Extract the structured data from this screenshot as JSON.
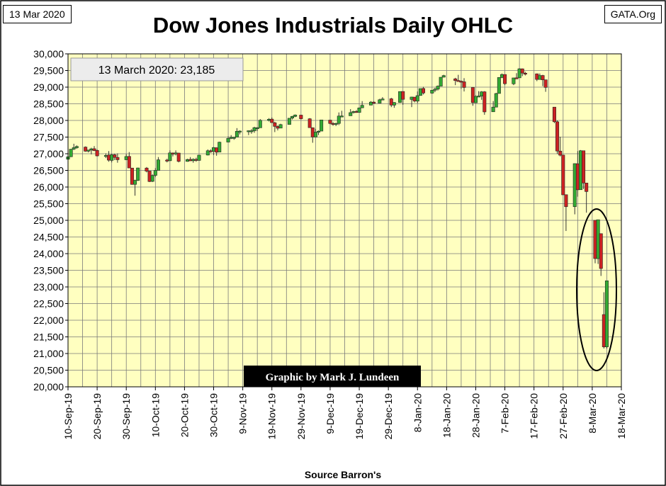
{
  "header": {
    "date_label": "13 Mar 2020",
    "site_label": "GATA.Org"
  },
  "chart_data": {
    "type": "candlestick",
    "title": "Dow Jones Industrials Daily OHLC",
    "xlabel": "Source Barron's",
    "ylabel": "",
    "ylim": [
      20000,
      30000
    ],
    "y_ticks": [
      20000,
      20500,
      21000,
      21500,
      22000,
      22500,
      23000,
      23500,
      24000,
      24500,
      25000,
      25500,
      26000,
      26500,
      27000,
      27500,
      28000,
      28500,
      29000,
      29500,
      30000
    ],
    "xlim": [
      "2019-09-10",
      "2020-03-18"
    ],
    "x_tick_labels": [
      "10-Sep-19",
      "20-Sep-19",
      "30-Sep-19",
      "10-Oct-19",
      "20-Oct-19",
      "30-Oct-19",
      "9-Nov-19",
      "19-Nov-19",
      "29-Nov-19",
      "9-Dec-19",
      "19-Dec-19",
      "29-Dec-19",
      "8-Jan-20",
      "18-Jan-20",
      "28-Jan-20",
      "7-Feb-20",
      "17-Feb-20",
      "27-Feb-20",
      "8-Mar-20",
      "18-Mar-20"
    ],
    "grid": true,
    "up_color": "#33aa33",
    "down_color": "#cc2222",
    "plot_background": "#ffffc0",
    "annotations": {
      "last_close_label": "13 March 2020: 23,185",
      "credit_label": "Graphic by Mark J. Lundeen",
      "highlight": "ellipse around 2020-03-09 to 2020-03-13"
    },
    "ohlc": [
      [
        "2019-09-10",
        26835,
        26910,
        26780,
        26909
      ],
      [
        "2019-09-11",
        26910,
        27140,
        26900,
        27137
      ],
      [
        "2019-09-12",
        27140,
        27300,
        27110,
        27182
      ],
      [
        "2019-09-13",
        27180,
        27250,
        27150,
        27219
      ],
      [
        "2019-09-16",
        27200,
        27220,
        27060,
        27076
      ],
      [
        "2019-09-17",
        27080,
        27120,
        27040,
        27110
      ],
      [
        "2019-09-18",
        27110,
        27180,
        26980,
        27147
      ],
      [
        "2019-09-19",
        27150,
        27230,
        27080,
        27094
      ],
      [
        "2019-09-20",
        27100,
        27130,
        26920,
        26935
      ],
      [
        "2019-09-23",
        26930,
        27010,
        26870,
        26949
      ],
      [
        "2019-09-24",
        26960,
        27080,
        26760,
        26807
      ],
      [
        "2019-09-25",
        26800,
        27000,
        26740,
        26970
      ],
      [
        "2019-09-26",
        26970,
        27000,
        26810,
        26891
      ],
      [
        "2019-09-27",
        26890,
        27010,
        26730,
        26820
      ],
      [
        "2019-09-30",
        26820,
        26990,
        26810,
        26917
      ],
      [
        "2019-10-01",
        26920,
        27050,
        26570,
        26573
      ],
      [
        "2019-10-02",
        26570,
        26570,
        26070,
        26079
      ],
      [
        "2019-10-03",
        26080,
        26220,
        25740,
        26201
      ],
      [
        "2019-10-04",
        26200,
        26580,
        26180,
        26573
      ],
      [
        "2019-10-07",
        26570,
        26600,
        26440,
        26478
      ],
      [
        "2019-10-08",
        26480,
        26480,
        26150,
        26165
      ],
      [
        "2019-10-09",
        26170,
        26380,
        26150,
        26347
      ],
      [
        "2019-10-10",
        26350,
        26570,
        26300,
        26497
      ],
      [
        "2019-10-11",
        26500,
        26900,
        26500,
        26817
      ],
      [
        "2019-10-14",
        26810,
        26850,
        26740,
        26787
      ],
      [
        "2019-10-15",
        26790,
        27100,
        26780,
        27025
      ],
      [
        "2019-10-16",
        27020,
        27040,
        26920,
        27001
      ],
      [
        "2019-10-17",
        27000,
        27100,
        26950,
        27026
      ],
      [
        "2019-10-18",
        27020,
        27030,
        26740,
        26770
      ],
      [
        "2019-10-21",
        26770,
        26850,
        26760,
        26827
      ],
      [
        "2019-10-22",
        26830,
        26900,
        26780,
        26788
      ],
      [
        "2019-10-23",
        26790,
        26860,
        26730,
        26833
      ],
      [
        "2019-10-24",
        26830,
        26880,
        26760,
        26805
      ],
      [
        "2019-10-25",
        26800,
        26930,
        26790,
        26958
      ],
      [
        "2019-10-28",
        26960,
        27130,
        26950,
        27090
      ],
      [
        "2019-10-29",
        27090,
        27130,
        27030,
        27071
      ],
      [
        "2019-10-30",
        27070,
        27200,
        26960,
        27186
      ],
      [
        "2019-10-31",
        27180,
        27190,
        26940,
        27046
      ],
      [
        "2019-11-01",
        27050,
        27360,
        27050,
        27347
      ],
      [
        "2019-11-04",
        27350,
        27520,
        27350,
        27462
      ],
      [
        "2019-11-05",
        27460,
        27560,
        27440,
        27492
      ],
      [
        "2019-11-06",
        27490,
        27510,
        27420,
        27493
      ],
      [
        "2019-11-07",
        27500,
        27770,
        27500,
        27675
      ],
      [
        "2019-11-08",
        27670,
        27700,
        27580,
        27681
      ],
      [
        "2019-11-11",
        27680,
        27700,
        27560,
        27691
      ],
      [
        "2019-11-12",
        27690,
        27740,
        27600,
        27691
      ],
      [
        "2019-11-13",
        27690,
        27810,
        27630,
        27784
      ],
      [
        "2019-11-14",
        27780,
        27800,
        27680,
        27782
      ],
      [
        "2019-11-15",
        27780,
        28040,
        27780,
        28005
      ],
      [
        "2019-11-18",
        28000,
        28070,
        27970,
        28036
      ],
      [
        "2019-11-19",
        28040,
        28090,
        27970,
        27934
      ],
      [
        "2019-11-20",
        27930,
        27960,
        27650,
        27821
      ],
      [
        "2019-11-21",
        27820,
        27850,
        27700,
        27766
      ],
      [
        "2019-11-22",
        27770,
        27900,
        27770,
        27876
      ],
      [
        "2019-11-25",
        27880,
        28070,
        27880,
        28066
      ],
      [
        "2019-11-26",
        28070,
        28140,
        28030,
        28122
      ],
      [
        "2019-11-27",
        28120,
        28180,
        28100,
        28164
      ],
      [
        "2019-11-29",
        28160,
        28170,
        28030,
        28051
      ],
      [
        "2019-12-02",
        28050,
        28070,
        27780,
        27783
      ],
      [
        "2019-12-03",
        27780,
        27790,
        27330,
        27502
      ],
      [
        "2019-12-04",
        27500,
        27750,
        27500,
        27649
      ],
      [
        "2019-12-05",
        27650,
        27700,
        27560,
        27677
      ],
      [
        "2019-12-06",
        27680,
        28020,
        27680,
        28015
      ],
      [
        "2019-12-09",
        28010,
        28020,
        27880,
        27909
      ],
      [
        "2019-12-10",
        27910,
        27950,
        27840,
        27881
      ],
      [
        "2019-12-11",
        27880,
        27930,
        27830,
        27911
      ],
      [
        "2019-12-12",
        27910,
        28240,
        27860,
        28132
      ],
      [
        "2019-12-13",
        28130,
        28290,
        28100,
        28135
      ],
      [
        "2019-12-16",
        28140,
        28340,
        28140,
        28235
      ],
      [
        "2019-12-17",
        28240,
        28290,
        28210,
        28267
      ],
      [
        "2019-12-18",
        28270,
        28310,
        28230,
        28239
      ],
      [
        "2019-12-19",
        28240,
        28390,
        28230,
        28376
      ],
      [
        "2019-12-20",
        28380,
        28580,
        28370,
        28455
      ],
      [
        "2019-12-23",
        28460,
        28580,
        28460,
        28551
      ],
      [
        "2019-12-24",
        28550,
        28580,
        28500,
        28515
      ],
      [
        "2019-12-26",
        28520,
        28650,
        28520,
        28621
      ],
      [
        "2019-12-27",
        28620,
        28700,
        28620,
        28645
      ],
      [
        "2019-12-30",
        28650,
        28680,
        28400,
        28462
      ],
      [
        "2019-12-31",
        28460,
        28550,
        28380,
        28538
      ],
      [
        "2020-01-02",
        28540,
        28870,
        28530,
        28868
      ],
      [
        "2020-01-03",
        28870,
        28870,
        28470,
        28634
      ],
      [
        "2020-01-06",
        28630,
        28710,
        28400,
        28703
      ],
      [
        "2020-01-07",
        28700,
        28700,
        28540,
        28583
      ],
      [
        "2020-01-08",
        28580,
        28870,
        28520,
        28745
      ],
      [
        "2020-01-09",
        28750,
        28960,
        28740,
        28956
      ],
      [
        "2020-01-10",
        28960,
        29010,
        28780,
        28824
      ],
      [
        "2020-01-13",
        28820,
        28910,
        28800,
        28907
      ],
      [
        "2020-01-14",
        28910,
        28980,
        28850,
        28940
      ],
      [
        "2020-01-15",
        28940,
        29050,
        28900,
        29030
      ],
      [
        "2020-01-16",
        29030,
        29300,
        29030,
        29297
      ],
      [
        "2020-01-17",
        29300,
        29370,
        29290,
        29348
      ],
      [
        "2020-01-21",
        29250,
        29280,
        29060,
        29196
      ],
      [
        "2020-01-22",
        29200,
        29370,
        29180,
        29186
      ],
      [
        "2020-01-23",
        29180,
        29200,
        28950,
        29160
      ],
      [
        "2020-01-24",
        29160,
        29270,
        28870,
        28990
      ],
      [
        "2020-01-27",
        28990,
        28990,
        28440,
        28535
      ],
      [
        "2020-01-28",
        28530,
        28760,
        28520,
        28723
      ],
      [
        "2020-01-29",
        28720,
        28880,
        28730,
        28734
      ],
      [
        "2020-01-30",
        28730,
        28880,
        28620,
        28859
      ],
      [
        "2020-01-31",
        28860,
        28880,
        28170,
        28256
      ],
      [
        "2020-02-03",
        28260,
        28580,
        28260,
        28400
      ],
      [
        "2020-02-04",
        28400,
        28830,
        28400,
        28808
      ],
      [
        "2020-02-05",
        28810,
        29290,
        28810,
        29290
      ],
      [
        "2020-02-06",
        29290,
        29410,
        29270,
        29380
      ],
      [
        "2020-02-07",
        29380,
        29380,
        29060,
        29103
      ],
      [
        "2020-02-10",
        29100,
        29280,
        29060,
        29277
      ],
      [
        "2020-02-11",
        29280,
        29420,
        29280,
        29277
      ],
      [
        "2020-02-12",
        29280,
        29570,
        29280,
        29551
      ],
      [
        "2020-02-13",
        29550,
        29560,
        29330,
        29423
      ],
      [
        "2020-02-14",
        29420,
        29460,
        29350,
        29398
      ],
      [
        "2020-02-18",
        29400,
        29410,
        29180,
        29232
      ],
      [
        "2020-02-19",
        29230,
        29410,
        29230,
        29348
      ],
      [
        "2020-02-20",
        29350,
        29370,
        29030,
        29219
      ],
      [
        "2020-02-21",
        29220,
        29220,
        28860,
        28992
      ],
      [
        "2020-02-24",
        28400,
        28400,
        27920,
        27961
      ],
      [
        "2020-02-25",
        27960,
        28000,
        26990,
        27081
      ],
      [
        "2020-02-26",
        27080,
        27510,
        26920,
        26957
      ],
      [
        "2020-02-27",
        26960,
        26960,
        25760,
        25766
      ],
      [
        "2020-02-28",
        25770,
        25770,
        24680,
        25409
      ],
      [
        "2020-03-02",
        25410,
        26710,
        25180,
        26703
      ],
      [
        "2020-03-03",
        26700,
        27080,
        25710,
        25917
      ],
      [
        "2020-03-04",
        25920,
        27110,
        25920,
        27091
      ],
      [
        "2020-03-05",
        27090,
        27090,
        25940,
        26121
      ],
      [
        "2020-03-06",
        26120,
        26120,
        25230,
        25864
      ],
      [
        "2020-03-09",
        25000,
        25000,
        23710,
        23851
      ],
      [
        "2020-03-10",
        23850,
        25020,
        23690,
        25018
      ],
      [
        "2020-03-11",
        24600,
        24600,
        23330,
        23553
      ],
      [
        "2020-03-12",
        22170,
        22840,
        21150,
        21200
      ],
      [
        "2020-03-13",
        21200,
        23190,
        21150,
        23185
      ]
    ]
  }
}
